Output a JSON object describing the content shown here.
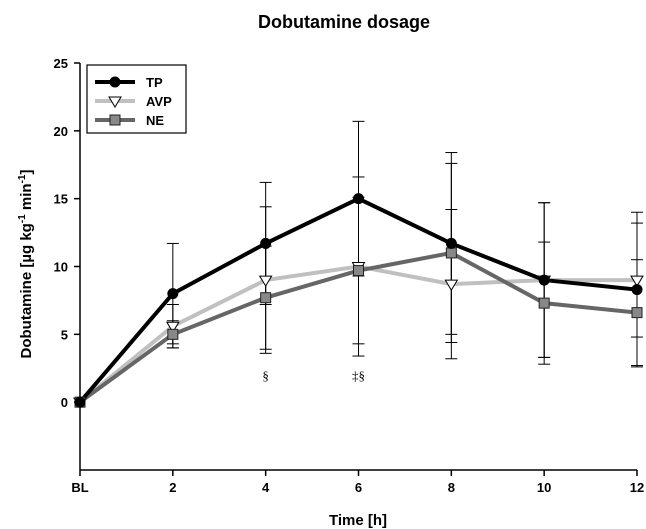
{
  "chart_data": {
    "type": "line",
    "title": "Dobutamine dosage",
    "xlabel": "Time [h]",
    "ylabel_main": "Dobutamine [µg kg",
    "ylabel_sup1": "-1",
    "ylabel_mid": " min",
    "ylabel_sup2": "-1",
    "ylabel_end": "]",
    "categories": [
      "BL",
      "2",
      "4",
      "6",
      "8",
      "10",
      "12"
    ],
    "ylim": [
      -5,
      25
    ],
    "yticks": [
      "0",
      "5",
      "10",
      "15",
      "20",
      "25"
    ],
    "grid": false,
    "legend_position": "top-left",
    "series": [
      {
        "name": "TP",
        "color": "#000000",
        "marker": "circle",
        "values": [
          0,
          8,
          11.7,
          15,
          11.7,
          9,
          8.3
        ],
        "error": [
          0,
          3.7,
          4.5,
          5.7,
          6.7,
          5.7,
          5.7
        ]
      },
      {
        "name": "AVP",
        "color": "#c0c0c0",
        "marker": "triangle-down",
        "values": [
          0,
          5.6,
          9,
          10,
          8.7,
          9,
          9
        ],
        "error": [
          0,
          1.6,
          5.4,
          6.6,
          5.5,
          5.7,
          4.2
        ]
      },
      {
        "name": "NE",
        "color": "#666666",
        "marker": "square",
        "values": [
          0,
          5,
          7.7,
          9.7,
          11,
          7.3,
          6.6
        ],
        "error": [
          0,
          1.0,
          3.8,
          5.4,
          6.6,
          4.5,
          3.9
        ]
      }
    ],
    "annotations": [
      {
        "x": "4",
        "y": 2,
        "text": "§"
      },
      {
        "x": "6",
        "y": 2,
        "text": "‡§"
      }
    ]
  }
}
